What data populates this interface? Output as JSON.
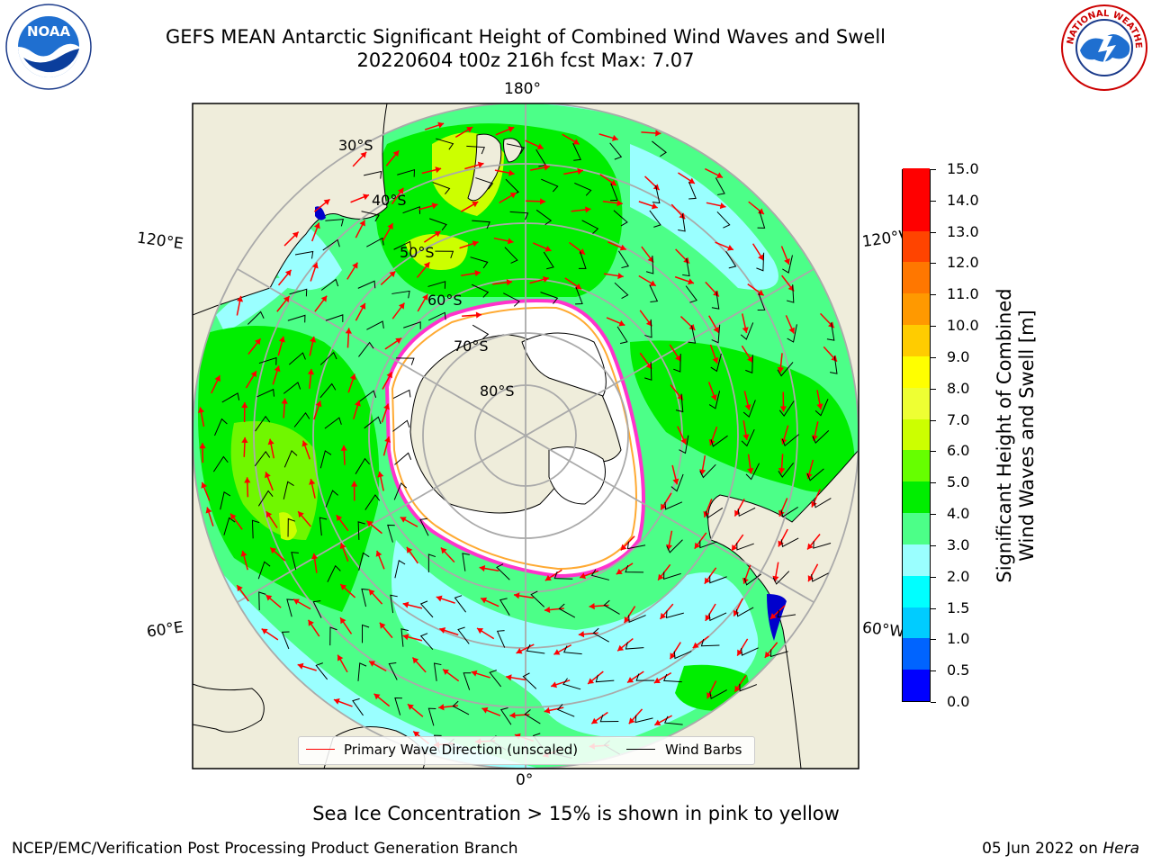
{
  "title_line1": "GEFS MEAN Antarctic Significant Height of Combined Wind Waves and Swell",
  "title_line2": "20220604 t00z 216h fcst   Max: 7.07",
  "logos": {
    "left": "NOAA",
    "right": "National Weather Service"
  },
  "lon_labels": {
    "top": "180°",
    "bottom": "0°",
    "left_upper": "120°E",
    "left_lower": "60°E",
    "right_upper": "120°W",
    "right_lower": "60°W"
  },
  "lat_labels": [
    "30°S",
    "40°S",
    "50°S",
    "60°S",
    "70°S",
    "80°S"
  ],
  "legend": {
    "wave_label": "Primary Wave Direction (unscaled)",
    "wind_label": "Wind Barbs",
    "wave_color": "#ff0000",
    "wind_color": "#000000"
  },
  "colorbar": {
    "title_line1": "Significant Height of Combined",
    "title_line2": "Wind Waves and Swell [m]",
    "ticks": [
      "0.0",
      "0.5",
      "1.0",
      "1.5",
      "2.0",
      "3.0",
      "4.0",
      "5.0",
      "6.0",
      "7.0",
      "8.0",
      "9.0",
      "10.0",
      "11.0",
      "12.0",
      "13.0",
      "14.0",
      "15.0"
    ],
    "colors": [
      "#0000ff",
      "#0064ff",
      "#00ccff",
      "#00ffff",
      "#9affff",
      "#4cff88",
      "#00ee00",
      "#66ff00",
      "#ccff00",
      "#eeff33",
      "#ffff00",
      "#ffcc00",
      "#ff9900",
      "#ff7700",
      "#ff4400",
      "#ff0000",
      "#ff0000"
    ]
  },
  "colors": {
    "land": "#efeddb",
    "ice": "#ffffff",
    "ice_edge": "#ff33cc",
    "ocean_low": "#9affff",
    "ocean_mid": "#4cff88",
    "ocean_high": "#00ee00",
    "ocean_peak": "#ccff00"
  },
  "caption": "Sea Ice Concentration > 15% is shown in pink to yellow",
  "credit": "NCEP/EMC/Verification Post Processing Product Generation Branch",
  "date_text": "05 Jun 2022 on ",
  "date_host": "Hera"
}
